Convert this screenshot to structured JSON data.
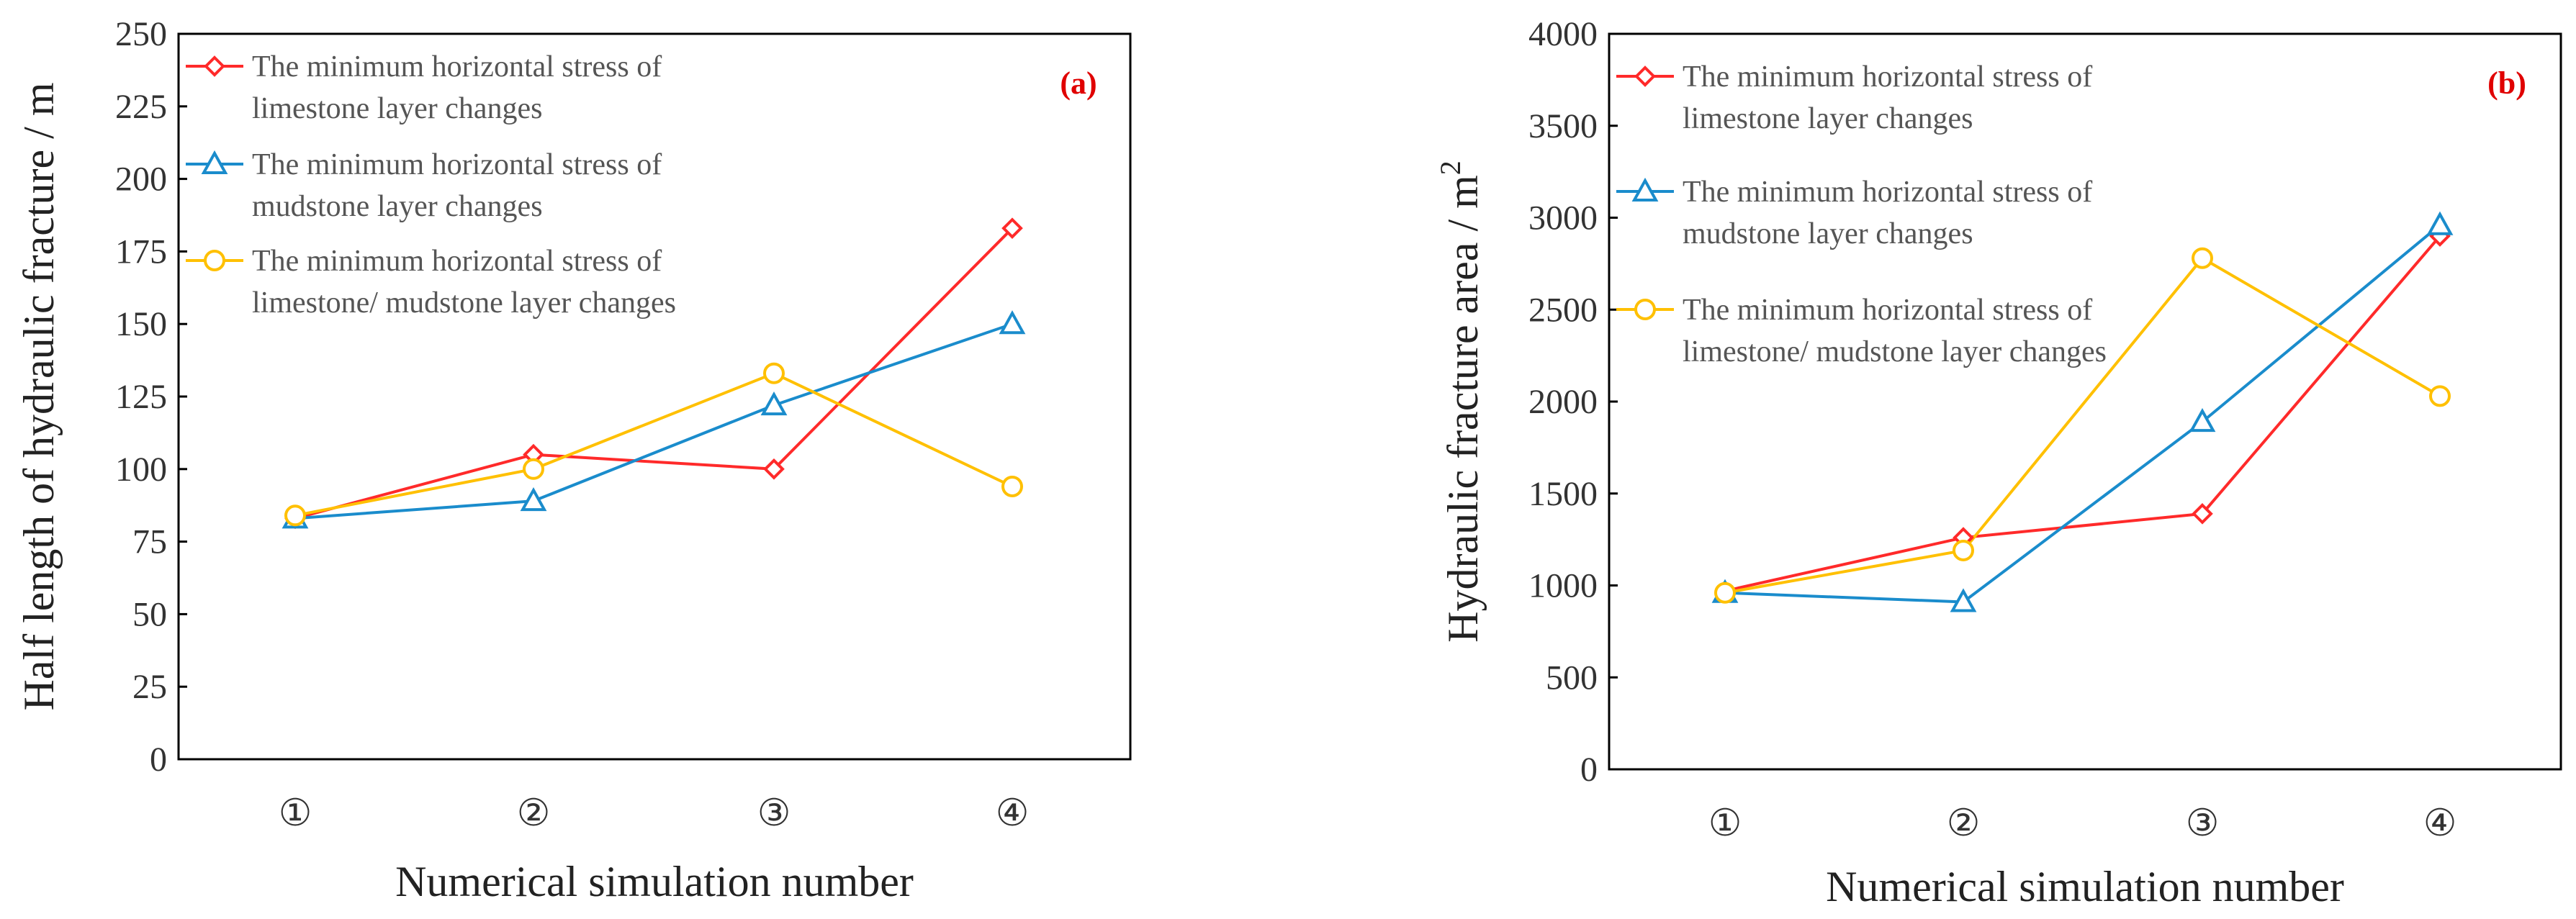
{
  "chart_data": [
    {
      "type": "line",
      "panel_label": "(a)",
      "categories": [
        "①",
        "②",
        "③",
        "④"
      ],
      "xlabel": "Numerical simulation number",
      "ylabel": "Half length of hydraulic fracture / m",
      "ylim": [
        0,
        250
      ],
      "yticks": [
        0,
        25,
        50,
        75,
        100,
        125,
        150,
        175,
        200,
        225,
        250
      ],
      "grid": false,
      "legend_position": "top-left",
      "series": [
        {
          "name_lines": [
            "The minimum horizontal stress of",
            "limestone layer changes"
          ],
          "color": "#ff2a2a",
          "marker": "diamond",
          "values": [
            83,
            105,
            100,
            183
          ]
        },
        {
          "name_lines": [
            "The minimum horizontal stress of",
            "mudstone layer changes"
          ],
          "color": "#1a8ccc",
          "marker": "triangle",
          "values": [
            83,
            89,
            122,
            150
          ]
        },
        {
          "name_lines": [
            "The minimum horizontal stress of",
            "limestone/ mudstone layer changes"
          ],
          "color": "#ffc000",
          "marker": "circle",
          "values": [
            84,
            100,
            133,
            94
          ]
        }
      ]
    },
    {
      "type": "line",
      "panel_label": "(b)",
      "categories": [
        "①",
        "②",
        "③",
        "④"
      ],
      "xlabel": "Numerical simulation number",
      "ylabel_main": "Hydraulic fracture area / m",
      "ylabel_sup": "2",
      "ylim": [
        0,
        4000
      ],
      "yticks": [
        0,
        500,
        1000,
        1500,
        2000,
        2500,
        3000,
        3500,
        4000
      ],
      "grid": false,
      "legend_position": "top-left",
      "series": [
        {
          "name_lines": [
            "The minimum horizontal stress of",
            "limestone layer changes"
          ],
          "color": "#ff2a2a",
          "marker": "diamond",
          "values": [
            970,
            1260,
            1390,
            2900
          ]
        },
        {
          "name_lines": [
            "The minimum horizontal stress of",
            "mudstone layer changes"
          ],
          "color": "#1a8ccc",
          "marker": "triangle",
          "values": [
            960,
            910,
            1890,
            2960
          ]
        },
        {
          "name_lines": [
            "The minimum horizontal stress of",
            "limestone/ mudstone layer changes"
          ],
          "color": "#ffc000",
          "marker": "circle",
          "values": [
            960,
            1190,
            2780,
            2030
          ]
        }
      ]
    }
  ]
}
